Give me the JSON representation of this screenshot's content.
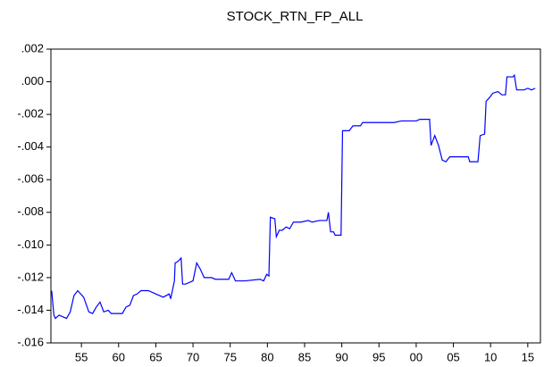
{
  "chart_data": {
    "type": "line",
    "title": "STOCK_RTN_FP_ALL",
    "series": [
      {
        "color": "#0000ff",
        "x": [
          1951.0,
          1951.3,
          1951.5,
          1952,
          1953,
          1953.5,
          1954,
          1954.5,
          1955.3,
          1956,
          1956.5,
          1957,
          1957.5,
          1958,
          1958.6,
          1959,
          1960.5,
          1961,
          1961.5,
          1962,
          1962.5,
          1963,
          1964,
          1965,
          1966,
          1966.8,
          1967,
          1967.5,
          1967.6,
          1968,
          1968.4,
          1968.6,
          1969,
          1970,
          1970.5,
          1971,
          1971.5,
          1972.5,
          1973,
          1974.8,
          1975.2,
          1975.7,
          1977,
          1979,
          1979.5,
          1979.9,
          1980.2,
          1980.4,
          1981,
          1981.2,
          1981.6,
          1982,
          1982.5,
          1983,
          1983.5,
          1984.5,
          1985.5,
          1986,
          1987,
          1988,
          1988.2,
          1988.5,
          1988.9,
          1989.1,
          1989.9,
          1990.1,
          1991,
          1991.5,
          1992.5,
          1992.8,
          1997,
          1998,
          2000,
          2000.5,
          2001.8,
          2002,
          2002.5,
          2003,
          2003.5,
          2004,
          2004.5,
          2007,
          2007.2,
          2008.3,
          2008.6,
          2009.2,
          2009.4,
          2009.8,
          2010.3,
          2011,
          2011.5,
          2012,
          2012.2,
          2013,
          2013.2,
          2013.5,
          2014.5,
          2015,
          2015.5,
          2016
        ],
        "values": [
          -0.0128,
          -0.0143,
          -0.0145,
          -0.0143,
          -0.0145,
          -0.0141,
          -0.0131,
          -0.0128,
          -0.0132,
          -0.0141,
          -0.0142,
          -0.0138,
          -0.0135,
          -0.0141,
          -0.014,
          -0.0142,
          -0.0142,
          -0.0138,
          -0.0137,
          -0.0131,
          -0.013,
          -0.0128,
          -0.0128,
          -0.013,
          -0.0132,
          -0.013,
          -0.0133,
          -0.0122,
          -0.0111,
          -0.011,
          -0.0108,
          -0.0124,
          -0.0124,
          -0.0122,
          -0.0111,
          -0.0115,
          -0.012,
          -0.012,
          -0.0121,
          -0.0121,
          -0.0117,
          -0.0122,
          -0.0122,
          -0.0121,
          -0.0122,
          -0.0118,
          -0.0119,
          -0.0083,
          -0.0084,
          -0.0095,
          -0.0091,
          -0.0091,
          -0.0089,
          -0.009,
          -0.0086,
          -0.0086,
          -0.0085,
          -0.0086,
          -0.0085,
          -0.0085,
          -0.008,
          -0.0092,
          -0.0092,
          -0.0094,
          -0.0094,
          -0.003,
          -0.003,
          -0.0027,
          -0.0027,
          -0.0025,
          -0.0025,
          -0.0024,
          -0.0024,
          -0.0023,
          -0.0023,
          -0.0039,
          -0.0033,
          -0.0039,
          -0.0048,
          -0.0049,
          -0.0046,
          -0.0046,
          -0.0049,
          -0.0049,
          -0.0033,
          -0.0032,
          -0.0012,
          -0.001,
          -0.0007,
          -0.0006,
          -0.0008,
          -0.0008,
          0.0003,
          0.0003,
          0.0004,
          -0.0005,
          -0.0005,
          -0.0004,
          -0.0005,
          -0.0004
        ]
      }
    ],
    "xlim": [
      1950.9,
      2016.7
    ],
    "xticks": [
      {
        "value": 1955,
        "label": "55"
      },
      {
        "value": 1960,
        "label": "60"
      },
      {
        "value": 1965,
        "label": "65"
      },
      {
        "value": 1970,
        "label": "70"
      },
      {
        "value": 1975,
        "label": "75"
      },
      {
        "value": 1980,
        "label": "80"
      },
      {
        "value": 1985,
        "label": "85"
      },
      {
        "value": 1990,
        "label": "90"
      },
      {
        "value": 1995,
        "label": "95"
      },
      {
        "value": 2000,
        "label": "00"
      },
      {
        "value": 2005,
        "label": "05"
      },
      {
        "value": 2010,
        "label": "10"
      },
      {
        "value": 2015,
        "label": "15"
      }
    ],
    "ylim": [
      -0.016,
      0.002
    ],
    "yticks": [
      {
        "value": 0.002,
        "label": ".002"
      },
      {
        "value": 0,
        "label": ".000"
      },
      {
        "value": -0.002,
        "label": "-.002"
      },
      {
        "value": -0.004,
        "label": "-.004"
      },
      {
        "value": -0.006,
        "label": "-.006"
      },
      {
        "value": -0.008,
        "label": "-.008"
      },
      {
        "value": -0.01,
        "label": "-.010"
      },
      {
        "value": -0.012,
        "label": "-.012"
      },
      {
        "value": -0.014,
        "label": "-.014"
      },
      {
        "value": -0.016,
        "label": "-.016"
      }
    ],
    "grid": false
  }
}
